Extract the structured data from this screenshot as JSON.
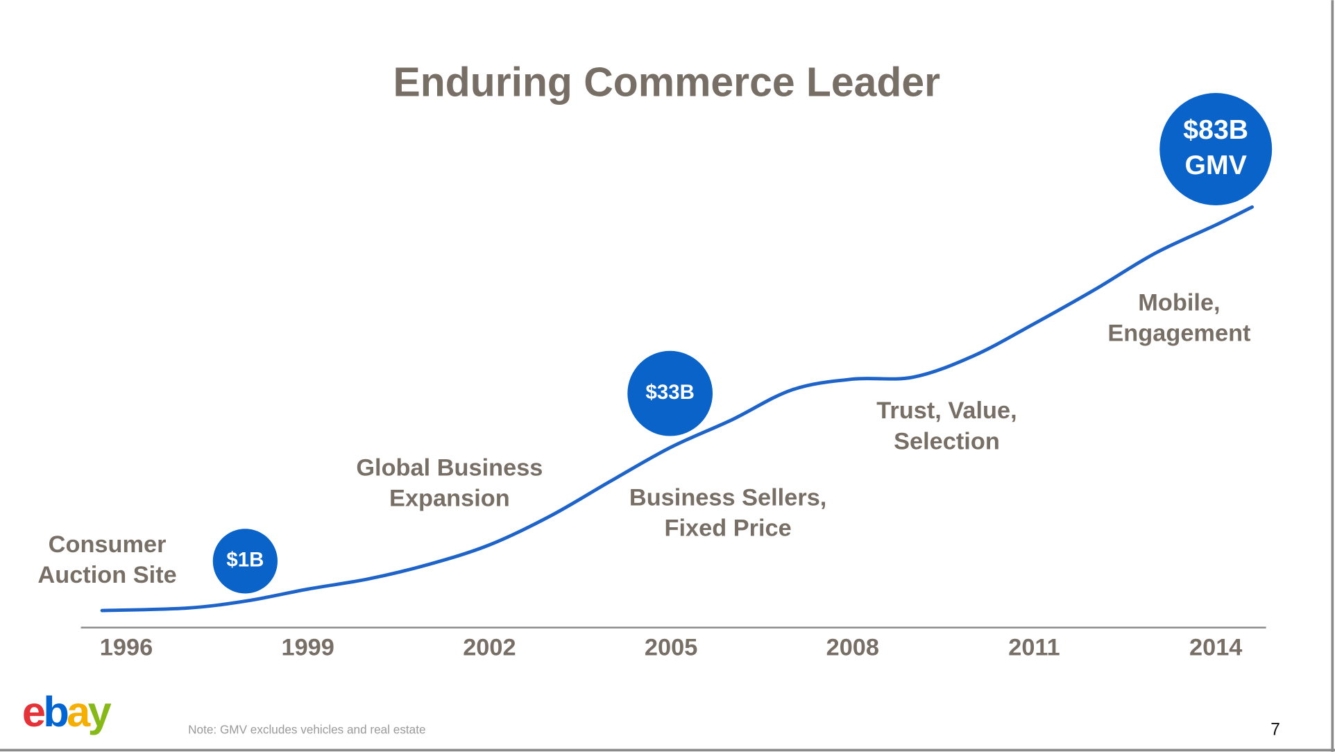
{
  "chart_data": {
    "type": "line",
    "title": "Enduring Commerce Leader",
    "x": [
      1995.6,
      1997,
      1998,
      1999,
      2000,
      2001,
      2002,
      2003,
      2004,
      2005,
      2006,
      2007,
      2008,
      2009,
      2010,
      2011,
      2012,
      2013,
      2014,
      2014.6
    ],
    "series": [
      {
        "color": "#1e64c8",
        "values": [
          0,
          0.5,
          2,
          4.4,
          6.5,
          9.5,
          13.5,
          19.4,
          26.6,
          33.6,
          39.2,
          45.4,
          47.6,
          48,
          52.4,
          59,
          66,
          73.5,
          79.3,
          83
        ]
      }
    ],
    "xlim": [
      1995.25,
      2014.83
    ],
    "xticks": [
      1996,
      1999,
      2002,
      2005,
      2008,
      2011,
      2014
    ],
    "ylim": [
      0,
      90
    ],
    "bubbles": [
      {
        "lines": [
          "$1B"
        ]
      },
      {
        "lines": [
          "$33B"
        ]
      },
      {
        "lines": [
          "$83B",
          "GMV"
        ]
      }
    ],
    "annotations": [
      {
        "lines": [
          "Consumer",
          "Auction Site"
        ]
      },
      {
        "lines": [
          "Global Business",
          "Expansion"
        ]
      },
      {
        "lines": [
          "Business Sellers,",
          "Fixed Price"
        ]
      },
      {
        "lines": [
          "Trust, Value,",
          "Selection"
        ]
      },
      {
        "lines": [
          "Mobile,",
          "Engagement"
        ]
      }
    ],
    "note": "Note: GMV excludes vehicles and real estate",
    "logo": "ebay",
    "page_number": "7"
  }
}
